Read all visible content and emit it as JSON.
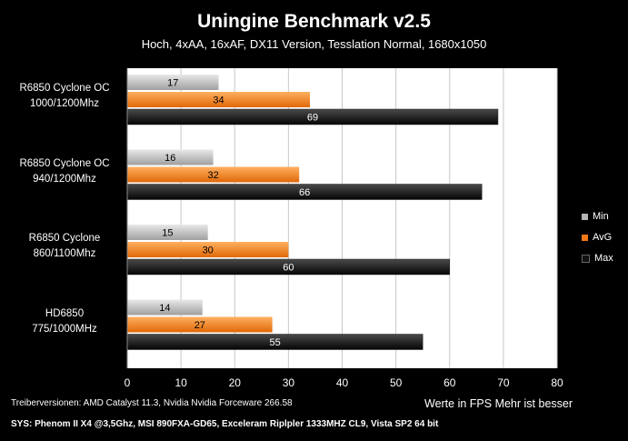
{
  "chart_data": {
    "type": "bar",
    "orientation": "horizontal",
    "title": "Uningine Benchmark v2.5",
    "subtitle": "Hoch, 4xAA, 16xAF, DX11 Version, Tesslation Normal, 1680x1050",
    "categories": [
      [
        "R6850 Cyclone OC",
        "1000/1200Mhz"
      ],
      [
        "R6850 Cyclone OC",
        "940/1200Mhz"
      ],
      [
        "R6850 Cyclone",
        "860/1100Mhz"
      ],
      [
        "HD6850",
        "775/1000MHz"
      ]
    ],
    "series": [
      {
        "name": "Min",
        "color": "#b4b4b4",
        "values": [
          17,
          16,
          15,
          14
        ]
      },
      {
        "name": "AvG",
        "color": "#f07818",
        "values": [
          34,
          32,
          30,
          27
        ]
      },
      {
        "name": "Max",
        "color": "#111111",
        "values": [
          69,
          66,
          60,
          55
        ]
      }
    ],
    "xlim": [
      0,
      80
    ],
    "xticks": [
      "0",
      "10",
      "20",
      "30",
      "40",
      "50",
      "60",
      "70",
      "80"
    ],
    "xlabel": "Werte in FPS Mehr ist besser",
    "grid": true,
    "legend_position": "right"
  },
  "footer": {
    "drivers": "Treiberversionen: AMD Catalyst 11.3, Nvidia Nvidia Forceware 266.58",
    "system": "SYS: Phenom II X4 @3,5Ghz, MSI 890FXA-GD65, Exceleram Riplpler 1333MHZ CL9, Vista SP2 64 bit"
  },
  "colors": {
    "background": "#000000",
    "plot_background": "#ffffff",
    "grid": "#c8c8c8",
    "text": "#ffffff"
  }
}
